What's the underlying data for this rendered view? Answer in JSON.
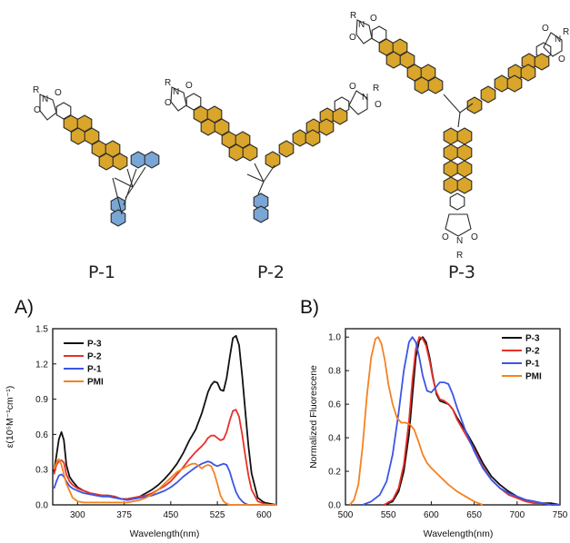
{
  "molecules": [
    {
      "label": "P-1",
      "atoms": [
        "R",
        "N",
        "O",
        "O"
      ]
    },
    {
      "label": "P-2",
      "atoms": [
        "R",
        "N",
        "O",
        "O",
        "N",
        "R",
        "O",
        "O"
      ]
    },
    {
      "label": "P-3",
      "atoms": [
        "R",
        "N",
        "O",
        "O",
        "O",
        "N",
        "R",
        "O",
        "O",
        "N",
        "O",
        "R"
      ]
    }
  ],
  "colors": {
    "gold": "#d9a52a",
    "blue": "#7aa6d6",
    "black": "#111111",
    "red": "#e8302a",
    "blueLine": "#3b55e6",
    "orange": "#f58220"
  },
  "chart_data": [
    {
      "panel": "A)",
      "type": "line",
      "xlabel": "Wavelength(nm)",
      "ylabel": "ε(10⁵M⁻¹cm⁻¹)",
      "xlim": [
        260,
        620
      ],
      "ylim": [
        0,
        1.5
      ],
      "xticks": [
        300,
        375,
        450,
        525,
        600
      ],
      "yticks": [
        0.0,
        0.3,
        0.6,
        0.9,
        1.2,
        1.5
      ],
      "ytick_labels": [
        "0.0",
        "0.3",
        "0.6",
        "0.9",
        "1.2",
        "1.5"
      ],
      "legend": "top-right",
      "series": [
        {
          "name": "P-3",
          "color": "#111111",
          "x": [
            262,
            266,
            270,
            274,
            278,
            282,
            287,
            292,
            300,
            310,
            320,
            330,
            340,
            350,
            360,
            370,
            380,
            390,
            400,
            410,
            420,
            430,
            440,
            450,
            460,
            470,
            480,
            490,
            500,
            505,
            510,
            515,
            520,
            525,
            530,
            535,
            540,
            545,
            550,
            555,
            560,
            565,
            570,
            575,
            580,
            590,
            600,
            610,
            620
          ],
          "y": [
            0.28,
            0.42,
            0.56,
            0.62,
            0.55,
            0.34,
            0.24,
            0.2,
            0.15,
            0.12,
            0.1,
            0.09,
            0.08,
            0.08,
            0.07,
            0.05,
            0.05,
            0.06,
            0.07,
            0.1,
            0.13,
            0.17,
            0.22,
            0.28,
            0.35,
            0.44,
            0.55,
            0.64,
            0.78,
            0.87,
            0.96,
            1.02,
            1.05,
            1.04,
            0.98,
            0.97,
            1.08,
            1.26,
            1.42,
            1.44,
            1.36,
            1.1,
            0.8,
            0.5,
            0.27,
            0.06,
            0.02,
            0.01,
            0.0
          ]
        },
        {
          "name": "P-2",
          "color": "#e8302a",
          "x": [
            262,
            266,
            270,
            274,
            278,
            282,
            287,
            292,
            300,
            310,
            320,
            330,
            340,
            350,
            360,
            370,
            380,
            390,
            400,
            410,
            420,
            430,
            440,
            450,
            460,
            470,
            480,
            490,
            500,
            505,
            510,
            515,
            520,
            525,
            530,
            535,
            540,
            545,
            550,
            555,
            560,
            565,
            570,
            575,
            580,
            590,
            600,
            610,
            620
          ],
          "y": [
            0.26,
            0.34,
            0.37,
            0.38,
            0.36,
            0.26,
            0.2,
            0.17,
            0.14,
            0.12,
            0.1,
            0.09,
            0.08,
            0.08,
            0.07,
            0.05,
            0.05,
            0.06,
            0.07,
            0.08,
            0.1,
            0.13,
            0.16,
            0.2,
            0.26,
            0.32,
            0.39,
            0.45,
            0.5,
            0.53,
            0.57,
            0.59,
            0.59,
            0.57,
            0.55,
            0.56,
            0.62,
            0.72,
            0.8,
            0.81,
            0.75,
            0.6,
            0.42,
            0.25,
            0.13,
            0.03,
            0.01,
            0.0,
            0.0
          ]
        },
        {
          "name": "P-1",
          "color": "#3b55e6",
          "x": [
            262,
            266,
            270,
            274,
            278,
            282,
            287,
            292,
            300,
            310,
            320,
            330,
            340,
            350,
            360,
            370,
            380,
            390,
            400,
            410,
            420,
            430,
            440,
            450,
            460,
            470,
            480,
            490,
            500,
            505,
            510,
            515,
            520,
            525,
            530,
            535,
            540,
            545,
            550,
            555,
            560,
            565,
            570,
            575,
            580,
            590,
            600,
            610,
            620
          ],
          "y": [
            0.14,
            0.2,
            0.25,
            0.26,
            0.24,
            0.2,
            0.16,
            0.14,
            0.12,
            0.1,
            0.09,
            0.08,
            0.07,
            0.07,
            0.06,
            0.05,
            0.04,
            0.05,
            0.06,
            0.07,
            0.08,
            0.1,
            0.12,
            0.15,
            0.19,
            0.24,
            0.28,
            0.32,
            0.35,
            0.36,
            0.37,
            0.36,
            0.34,
            0.33,
            0.34,
            0.35,
            0.34,
            0.28,
            0.19,
            0.11,
            0.06,
            0.03,
            0.01,
            0.0,
            0.0,
            0.0,
            0.0,
            0.0,
            0.0
          ]
        },
        {
          "name": "PMI",
          "color": "#f58220",
          "x": [
            262,
            266,
            270,
            274,
            278,
            282,
            287,
            292,
            300,
            310,
            320,
            330,
            340,
            350,
            360,
            370,
            380,
            390,
            400,
            410,
            420,
            430,
            440,
            450,
            460,
            470,
            480,
            485,
            490,
            495,
            500,
            505,
            510,
            515,
            520,
            525,
            530,
            535,
            540,
            545,
            550,
            560,
            570,
            580,
            600,
            620
          ],
          "y": [
            0.3,
            0.36,
            0.39,
            0.34,
            0.26,
            0.18,
            0.12,
            0.06,
            0.03,
            0.02,
            0.02,
            0.02,
            0.02,
            0.02,
            0.02,
            0.02,
            0.02,
            0.03,
            0.04,
            0.06,
            0.09,
            0.13,
            0.18,
            0.23,
            0.28,
            0.31,
            0.34,
            0.35,
            0.35,
            0.33,
            0.31,
            0.33,
            0.34,
            0.33,
            0.27,
            0.18,
            0.08,
            0.03,
            0.01,
            0.0,
            0.0,
            0.0,
            0.0,
            0.0,
            0.0,
            0.0
          ]
        }
      ]
    },
    {
      "panel": "B)",
      "type": "line",
      "xlabel": "Wavelength(nm)",
      "ylabel": "Normalized Fluorescene",
      "xlim": [
        500,
        750
      ],
      "ylim": [
        0,
        1.05
      ],
      "xticks": [
        500,
        550,
        600,
        650,
        700,
        750
      ],
      "yticks": [
        0.0,
        0.2,
        0.4,
        0.6,
        0.8,
        1.0
      ],
      "ytick_labels": [
        "0.0",
        "0.2",
        "0.4",
        "0.6",
        "0.8",
        "1.0"
      ],
      "legend": "top-right",
      "series": [
        {
          "name": "P-3",
          "color": "#111111",
          "x": [
            545,
            555,
            562,
            568,
            574,
            578,
            582,
            586,
            590,
            594,
            598,
            602,
            606,
            610,
            615,
            620,
            625,
            630,
            640,
            650,
            660,
            670,
            680,
            690,
            700,
            710,
            720,
            730,
            740,
            750
          ],
          "y": [
            0.0,
            0.02,
            0.08,
            0.2,
            0.42,
            0.65,
            0.88,
            0.98,
            1.0,
            0.97,
            0.88,
            0.76,
            0.66,
            0.62,
            0.61,
            0.6,
            0.57,
            0.52,
            0.44,
            0.35,
            0.25,
            0.17,
            0.12,
            0.08,
            0.05,
            0.03,
            0.02,
            0.01,
            0.01,
            0.0
          ]
        },
        {
          "name": "P-2",
          "color": "#e8302a",
          "x": [
            545,
            555,
            562,
            568,
            574,
            578,
            582,
            586,
            590,
            594,
            598,
            602,
            606,
            610,
            615,
            620,
            625,
            630,
            640,
            650,
            660,
            670,
            680,
            690,
            700,
            710,
            720,
            730,
            740,
            750
          ],
          "y": [
            0.0,
            0.03,
            0.1,
            0.24,
            0.5,
            0.74,
            0.93,
            1.0,
            0.99,
            0.95,
            0.86,
            0.75,
            0.67,
            0.63,
            0.62,
            0.6,
            0.57,
            0.51,
            0.42,
            0.33,
            0.23,
            0.15,
            0.1,
            0.06,
            0.04,
            0.02,
            0.01,
            0.01,
            0.0,
            0.0
          ]
        },
        {
          "name": "P-1",
          "color": "#3b55e6",
          "x": [
            520,
            530,
            540,
            548,
            555,
            562,
            568,
            574,
            578,
            582,
            586,
            590,
            595,
            600,
            605,
            610,
            615,
            620,
            625,
            630,
            640,
            650,
            660,
            670,
            680,
            690,
            700,
            710,
            720,
            730,
            740,
            750
          ],
          "y": [
            0.0,
            0.02,
            0.06,
            0.14,
            0.3,
            0.55,
            0.8,
            0.97,
            1.0,
            0.97,
            0.88,
            0.77,
            0.68,
            0.67,
            0.7,
            0.73,
            0.73,
            0.72,
            0.66,
            0.58,
            0.44,
            0.32,
            0.22,
            0.15,
            0.1,
            0.07,
            0.05,
            0.03,
            0.02,
            0.01,
            0.0,
            0.0
          ]
        },
        {
          "name": "PMI",
          "color": "#f58220",
          "x": [
            505,
            510,
            515,
            520,
            525,
            530,
            535,
            538,
            542,
            546,
            550,
            555,
            560,
            565,
            570,
            575,
            580,
            585,
            590,
            595,
            600,
            610,
            620,
            630,
            640,
            650,
            660
          ],
          "y": [
            0.0,
            0.03,
            0.12,
            0.35,
            0.65,
            0.88,
            0.99,
            1.0,
            0.96,
            0.86,
            0.72,
            0.6,
            0.52,
            0.49,
            0.49,
            0.48,
            0.45,
            0.38,
            0.3,
            0.25,
            0.22,
            0.17,
            0.12,
            0.08,
            0.05,
            0.02,
            0.0
          ]
        }
      ]
    }
  ]
}
